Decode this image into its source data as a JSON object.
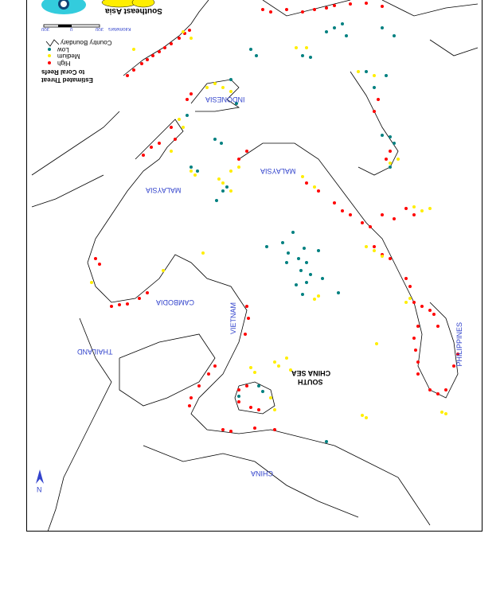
{
  "map": {
    "title": "Southeast Asia",
    "subtitle_line1": "Estimated Threat",
    "subtitle_line2": "to Coral Reefs",
    "orientation": "rotated 180 degrees",
    "scale": {
      "left": "300",
      "mid": "0",
      "right": "300",
      "unit": "Kilometers"
    },
    "north": "N",
    "legend": [
      {
        "label": "Country Boundary",
        "symbol": "line",
        "color": "#000000"
      },
      {
        "label": "Low",
        "symbol": "dot",
        "color": "#008080"
      },
      {
        "label": "Medium",
        "symbol": "dot",
        "color": "#ffee00"
      },
      {
        "label": "High",
        "symbol": "dot",
        "color": "#ff0000"
      }
    ],
    "labels": {
      "indonesia": "INDONESIA",
      "malaysia_east": "MALAYSIA",
      "malaysia_west": "MALAYSIA",
      "cambodia": "CAMBODIA",
      "vietnam": "VIETNAM",
      "thailand": "THAILAND",
      "south": "SOUTH",
      "china_sea": "CHINA SEA",
      "philippines": "PHILIPPINES",
      "china": "CHINA"
    }
  }
}
